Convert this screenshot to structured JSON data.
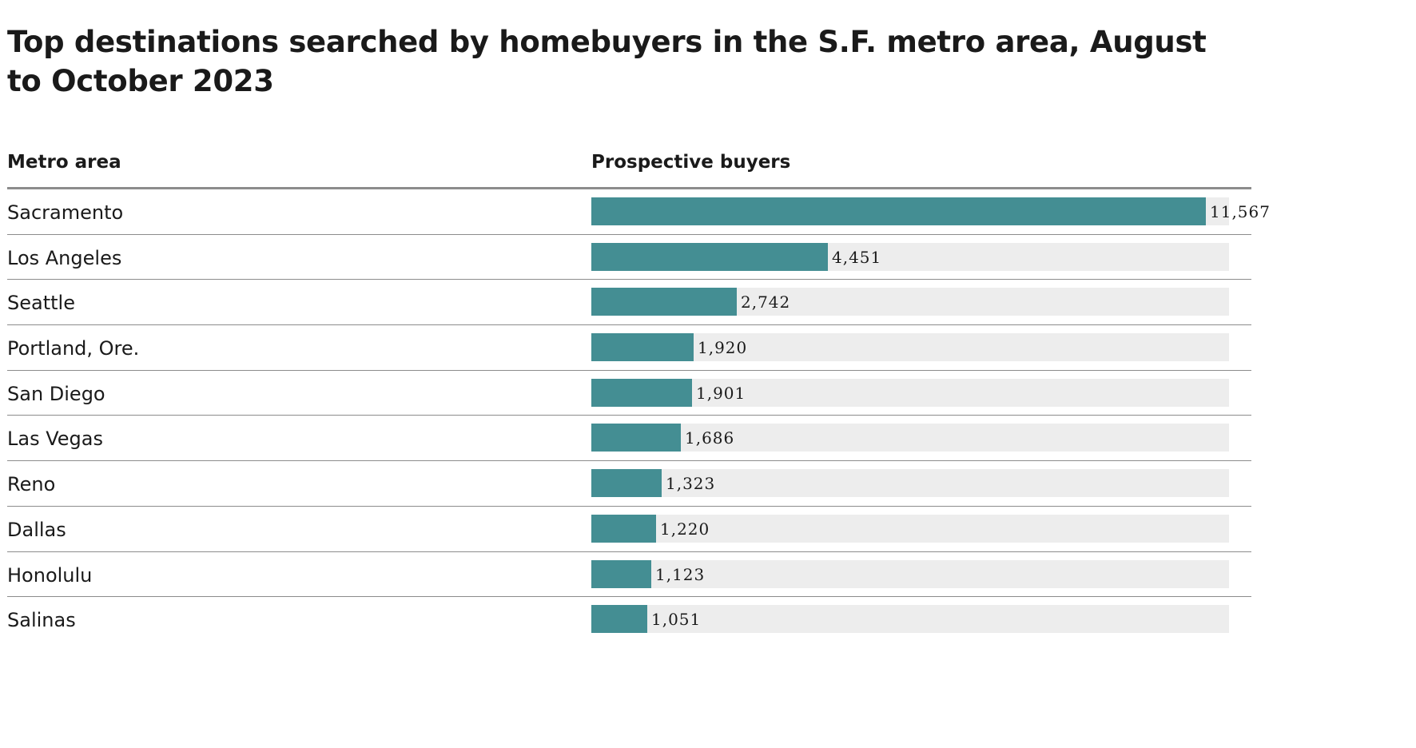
{
  "chart_data": {
    "type": "bar",
    "orientation": "horizontal",
    "title": "Top destinations searched by homebuyers in the S.F. metro area, August to October 2023",
    "column_headers": {
      "category": "Metro area",
      "value": "Prospective buyers"
    },
    "categories": [
      "Sacramento",
      "Los Angeles",
      "Seattle",
      "Portland, Ore.",
      "San Diego",
      "Las Vegas",
      "Reno",
      "Dallas",
      "Honolulu",
      "Salinas"
    ],
    "values": [
      11567,
      4451,
      2742,
      1920,
      1901,
      1686,
      1323,
      1220,
      1123,
      1051
    ],
    "value_labels": [
      "11,567",
      "4,451",
      "2,742",
      "1,920",
      "1,901",
      "1,686",
      "1,323",
      "1,220",
      "1,123",
      "1,051"
    ],
    "xlim": [
      0,
      12000
    ],
    "grid": false,
    "legend": "none",
    "colors": {
      "bar": "#448e93",
      "track": "#ededed",
      "rule": "#8c8c8c"
    }
  }
}
